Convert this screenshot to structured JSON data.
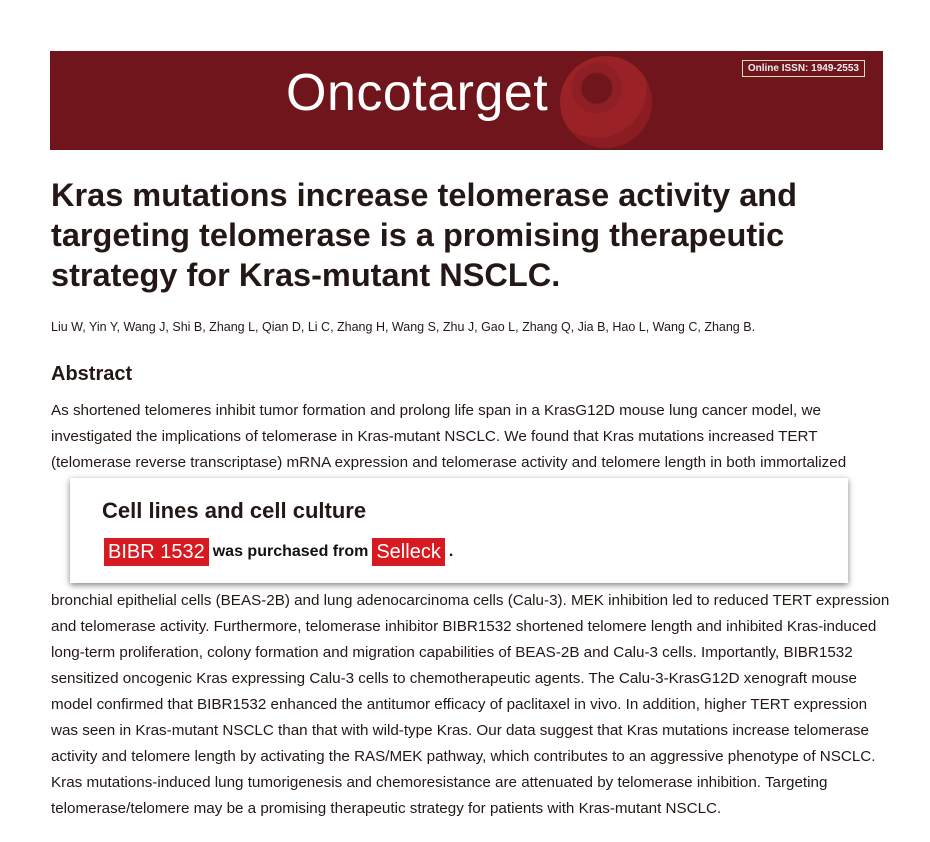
{
  "header": {
    "logo": "Oncotarget",
    "issn": "Online ISSN: 1949-2553",
    "color": "#70151c"
  },
  "article": {
    "title": "Kras mutations increase telomerase activity and targeting telomerase is a promising therapeutic strategy for Kras-mutant NSCLC.",
    "authors": "Liu W, Yin Y, Wang J, Shi B, Zhang L, Qian D, Li C, Zhang H, Wang S, Zhu J, Gao L, Zhang Q, Jia B, Hao L, Wang C, Zhang B.",
    "abstract_heading": "Abstract",
    "abstract": "As shortened telomeres inhibit tumor formation and prolong life span in a KrasG12D mouse lung cancer model, we investigated the implications of telomerase in Kras-mutant NSCLC. We found that Kras mutations increased TERT (telomerase reverse transcriptase) mRNA expression and telomerase activity and telomere length in both immortalized bronchial epithelial cells (BEAS-2B) and lung adenocarcinoma cells (Calu-3). MEK inhibition led to reduced TERT expression and telomerase activity. Furthermore, telomerase inhibitor BIBR1532 shortened telomere length and inhibited Kras-induced long-term proliferation, colony formation and migration capabilities of BEAS-2B and Calu-3 cells. Importantly, BIBR1532 sensitized oncogenic Kras expressing Calu-3 cells to chemotherapeutic agents. The Calu-3-KrasG12D xenograft mouse model confirmed that BIBR1532 enhanced the antitumor efficacy of paclitaxel in vivo. In addition, higher TERT expression was seen in Kras-mutant NSCLC than that with wild-type Kras. Our data suggest that Kras mutations increase telomerase activity and telomere length by activating the RAS/MEK pathway, which contributes to an aggressive phenotype of NSCLC. Kras mutations-induced lung tumorigenesis and chemoresistance are attenuated by telomerase inhibition. Targeting telomerase/telomere may be a promising therapeutic strategy for patients with Kras-mutant NSCLC."
  },
  "callout": {
    "heading": "Cell lines and cell culture",
    "compound": "BIBR 1532",
    "middle": "was purchased from",
    "supplier": "Selleck",
    "end": ".",
    "highlight_color": "#d71920"
  }
}
